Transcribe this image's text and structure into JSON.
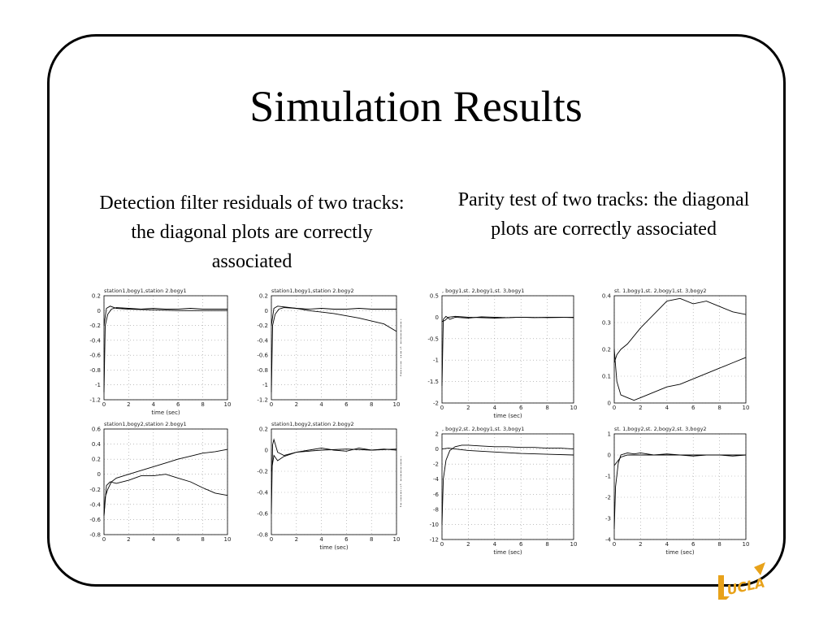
{
  "slide": {
    "title": "Simulation Results",
    "left_caption": "Detection filter residuals of two tracks: the diagonal plots are correctly associated",
    "right_caption": "Parity test of two tracks: the diagonal plots are correctly associated",
    "logo_text": "UCLA"
  },
  "colors": {
    "logo_gold": "#e8a21a",
    "frame": "#000000",
    "text": "#000000"
  },
  "chart_data": [
    {
      "type": "line",
      "title": "station1,bogy1,station 2.bogy1",
      "xlabel": "time (sec)",
      "ylabel": "",
      "xlim": [
        0,
        10
      ],
      "ylim": [
        -1.2,
        0.2
      ],
      "xticks": [
        0,
        2,
        4,
        6,
        8,
        10
      ],
      "yticks": [
        0.2,
        0,
        -0.2,
        -0.4,
        -0.6,
        -0.8,
        -1,
        -1.2
      ],
      "series": [
        {
          "x": [
            0,
            0.1,
            0.3,
            0.6,
            1,
            2,
            3,
            4,
            5,
            6,
            7,
            8,
            9,
            10
          ],
          "y": [
            -1.1,
            -0.2,
            -0.05,
            0.02,
            0.04,
            0.03,
            0.02,
            0.03,
            0.02,
            0.02,
            0.03,
            0.02,
            0.02,
            0.02
          ]
        },
        {
          "x": [
            0,
            0.2,
            0.5,
            1,
            2,
            4,
            6,
            8,
            10
          ],
          "y": [
            -0.2,
            0.03,
            0.06,
            0.03,
            0.02,
            0.01,
            0.0,
            0.0,
            0.0
          ]
        }
      ]
    },
    {
      "type": "line",
      "title": "station1,bogy1,station 2.bogy2",
      "xlabel": "",
      "ylabel": "residuals (raw units)",
      "xlim": [
        0,
        10
      ],
      "ylim": [
        -1.2,
        0.2
      ],
      "xticks": [
        0,
        2,
        4,
        6,
        8,
        10
      ],
      "yticks": [
        0.2,
        0,
        -0.2,
        -0.4,
        -0.6,
        -0.8,
        -1,
        -1.2
      ],
      "series": [
        {
          "x": [
            0,
            0.1,
            0.3,
            0.6,
            1,
            2,
            3,
            4,
            5,
            6,
            7,
            8,
            9,
            10
          ],
          "y": [
            -1.1,
            -0.2,
            -0.05,
            0.02,
            0.04,
            0.03,
            0.02,
            0.03,
            0.02,
            0.02,
            0.03,
            0.02,
            0.02,
            0.02
          ]
        },
        {
          "x": [
            0,
            0.2,
            0.5,
            1,
            2,
            3,
            4,
            5,
            6,
            7,
            8,
            9,
            10
          ],
          "y": [
            -0.2,
            0.03,
            0.06,
            0.05,
            0.03,
            0.0,
            -0.02,
            -0.04,
            -0.07,
            -0.1,
            -0.14,
            -0.18,
            -0.28
          ]
        }
      ]
    },
    {
      "type": "line",
      "title": "station1,bogy2,station 2.bogy1",
      "xlabel": "",
      "ylabel": "",
      "xlim": [
        0,
        10
      ],
      "ylim": [
        -0.8,
        0.6
      ],
      "xticks": [
        0,
        2,
        4,
        6,
        8,
        10
      ],
      "yticks": [
        0.6,
        0.4,
        0.2,
        0,
        -0.2,
        -0.4,
        -0.6,
        -0.8
      ],
      "series": [
        {
          "x": [
            0,
            0.1,
            0.3,
            0.6,
            1,
            2,
            3,
            4,
            5,
            6,
            7,
            8,
            9,
            10
          ],
          "y": [
            -0.55,
            -0.3,
            -0.2,
            -0.1,
            -0.05,
            0.0,
            0.05,
            0.1,
            0.15,
            0.2,
            0.24,
            0.28,
            0.3,
            0.33
          ]
        },
        {
          "x": [
            0,
            0.2,
            0.5,
            1,
            2,
            3,
            4,
            5,
            6,
            7,
            8,
            9,
            10
          ],
          "y": [
            -0.55,
            -0.15,
            -0.1,
            -0.12,
            -0.08,
            -0.02,
            -0.02,
            0.0,
            -0.05,
            -0.1,
            -0.18,
            -0.25,
            -0.28
          ]
        }
      ]
    },
    {
      "type": "line",
      "title": "station1,bogy2,station 2.bogy2",
      "xlabel": "time (sec)",
      "ylabel": "residuals (meters)",
      "xlim": [
        0,
        10
      ],
      "ylim": [
        -0.8,
        0.2
      ],
      "xticks": [
        0,
        2,
        4,
        6,
        8,
        10
      ],
      "yticks": [
        0.2,
        0,
        -0.2,
        -0.4,
        -0.6,
        -0.8
      ],
      "series": [
        {
          "x": [
            0,
            0.1,
            0.2,
            0.5,
            1,
            2,
            3,
            4,
            5,
            6,
            7,
            8,
            9,
            10
          ],
          "y": [
            -0.6,
            0.05,
            0.1,
            -0.02,
            -0.05,
            -0.02,
            0.0,
            0.02,
            0.0,
            -0.01,
            0.02,
            0.0,
            0.01,
            0.0
          ]
        },
        {
          "x": [
            0,
            0.2,
            0.5,
            1,
            2,
            4,
            6,
            8,
            10
          ],
          "y": [
            -0.2,
            -0.05,
            -0.1,
            -0.06,
            -0.02,
            0.0,
            0.01,
            0.0,
            0.01
          ]
        }
      ]
    },
    {
      "type": "line",
      "title": ", bogy1,st. 2,bogy1,st. 3,bogy1",
      "xlabel": "time (sec)",
      "ylabel": "",
      "xlim": [
        0,
        10
      ],
      "ylim": [
        -2,
        0.5
      ],
      "xticks": [
        0,
        2,
        4,
        6,
        8,
        10
      ],
      "yticks": [
        0.5,
        0,
        -0.5,
        -1,
        -1.5,
        -2
      ],
      "series": [
        {
          "x": [
            0,
            0.1,
            0.3,
            0.6,
            1,
            2,
            3,
            4,
            5,
            6,
            7,
            8,
            9,
            10
          ],
          "y": [
            -1.6,
            -0.05,
            0.02,
            -0.05,
            0.0,
            -0.02,
            0.01,
            0.0,
            -0.01,
            0.0,
            -0.01,
            0.0,
            0.0,
            -0.01
          ]
        },
        {
          "x": [
            0,
            0.2,
            0.5,
            1,
            2,
            4,
            6,
            8,
            10
          ],
          "y": [
            -0.1,
            -0.08,
            0.0,
            0.02,
            0.0,
            -0.02,
            0.0,
            -0.01,
            0.0
          ]
        }
      ]
    },
    {
      "type": "line",
      "title": "st. 1,bogy1,st. 2,bogy1,st. 3,bogy2",
      "xlabel": "",
      "ylabel": "",
      "xlim": [
        0,
        10
      ],
      "ylim": [
        0,
        0.4
      ],
      "xticks": [
        0,
        2,
        4,
        6,
        8,
        10
      ],
      "yticks": [
        0.4,
        0.3,
        0.2,
        0.1,
        0
      ],
      "series": [
        {
          "x": [
            0,
            0.2,
            0.5,
            1,
            2,
            3,
            4,
            5,
            6,
            7,
            8,
            9,
            10
          ],
          "y": [
            0.15,
            0.18,
            0.2,
            0.22,
            0.28,
            0.33,
            0.38,
            0.39,
            0.37,
            0.38,
            0.36,
            0.34,
            0.33
          ]
        },
        {
          "x": [
            0,
            0.2,
            0.5,
            1,
            1.5,
            2,
            3,
            4,
            5,
            6,
            7,
            8,
            9,
            10
          ],
          "y": [
            0.2,
            0.08,
            0.03,
            0.02,
            0.01,
            0.02,
            0.04,
            0.06,
            0.07,
            0.09,
            0.11,
            0.13,
            0.15,
            0.17
          ]
        }
      ]
    },
    {
      "type": "line",
      "title": ", bogy2,st. 2,bogy1,st. 3,bogy1",
      "xlabel": "time (sec)",
      "ylabel": "",
      "xlim": [
        0,
        10
      ],
      "ylim": [
        -12,
        2
      ],
      "xticks": [
        0,
        2,
        4,
        6,
        8,
        10
      ],
      "yticks": [
        2,
        0,
        -2,
        -4,
        -6,
        -8,
        -10,
        -12
      ],
      "series": [
        {
          "x": [
            0,
            0.1,
            0.3,
            0.6,
            1,
            1.5,
            2,
            3,
            4,
            5,
            6,
            7,
            8,
            9,
            10
          ],
          "y": [
            -10,
            -4,
            -1.5,
            -0.2,
            0.3,
            0.5,
            0.5,
            0.4,
            0.3,
            0.3,
            0.2,
            0.2,
            0.1,
            0.1,
            0.0
          ]
        },
        {
          "x": [
            0,
            0.5,
            1,
            2,
            4,
            6,
            8,
            10
          ],
          "y": [
            0.0,
            0.1,
            0.0,
            -0.2,
            -0.4,
            -0.6,
            -0.7,
            -0.8
          ]
        }
      ]
    },
    {
      "type": "line",
      "title": "st. 1,bogy2,st. 2,bogy2,st. 3,bogy2",
      "xlabel": "time (sec)",
      "ylabel": "",
      "xlim": [
        0,
        10
      ],
      "ylim": [
        -4,
        1
      ],
      "xticks": [
        0,
        2,
        4,
        6,
        8,
        10
      ],
      "yticks": [
        1,
        0,
        -1,
        -2,
        -3,
        -4
      ],
      "series": [
        {
          "x": [
            0,
            0.1,
            0.3,
            0.5,
            1,
            1.5,
            2,
            3,
            4,
            5,
            6,
            7,
            8,
            9,
            10
          ],
          "y": [
            -3.5,
            -1.5,
            -0.4,
            0.0,
            0.1,
            0.05,
            0.1,
            0.0,
            0.05,
            0.0,
            -0.05,
            0.0,
            0.0,
            -0.05,
            0.0
          ]
        },
        {
          "x": [
            0,
            0.5,
            1,
            2,
            4,
            6,
            8,
            10
          ],
          "y": [
            -0.5,
            -0.1,
            0.0,
            0.0,
            0.0,
            0.0,
            0.0,
            0.0
          ]
        }
      ]
    }
  ]
}
